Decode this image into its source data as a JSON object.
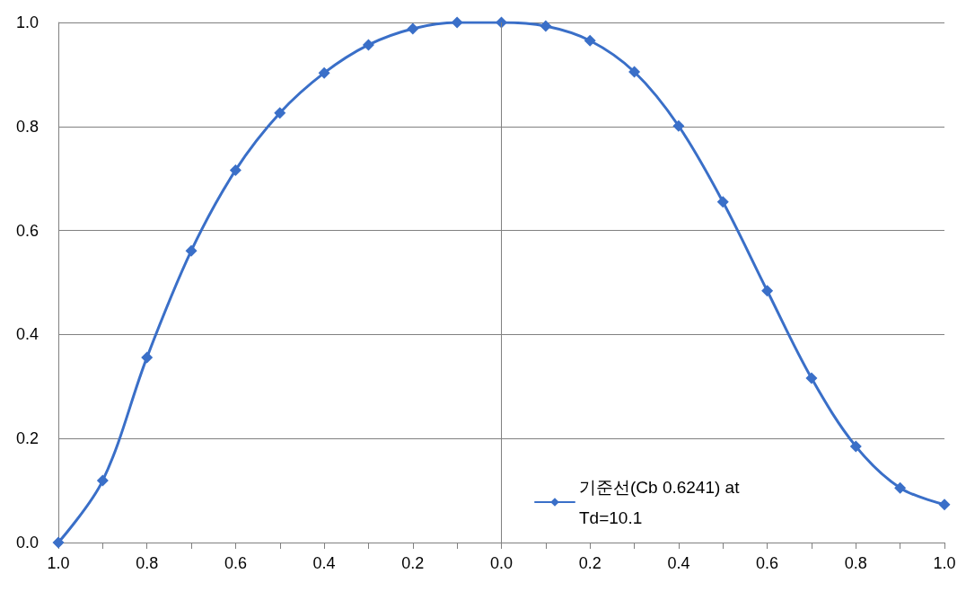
{
  "chart_data": {
    "type": "line",
    "categories": [
      "1.0",
      null,
      "0.8",
      null,
      "0.6",
      null,
      "0.4",
      null,
      "0.2",
      null,
      "0.0",
      null,
      "0.2",
      null,
      "0.4",
      null,
      "0.6",
      null,
      "0.8",
      null,
      "1.0"
    ],
    "series": [
      {
        "name": "기준선(Cb 0.6241) at Td=10.1",
        "color": "#3a6fc8",
        "values": [
          0.0,
          0.119,
          0.356,
          0.561,
          0.716,
          0.826,
          0.903,
          0.957,
          0.988,
          1.0,
          1.0,
          0.993,
          0.965,
          0.905,
          0.801,
          0.655,
          0.484,
          0.316,
          0.185,
          0.105,
          0.073
        ]
      }
    ],
    "ylim": [
      0,
      1
    ],
    "yticks": [
      {
        "value": 0,
        "label": "0.0"
      },
      {
        "value": 0.2,
        "label": "0.2"
      },
      {
        "value": 0.4,
        "label": "0.4"
      },
      {
        "value": 0.6,
        "label": "0.6"
      },
      {
        "value": 0.8,
        "label": "0.8"
      },
      {
        "value": 1,
        "label": "1.0"
      }
    ],
    "ref_lines": [
      {
        "axis": "x",
        "value": "0.0",
        "color": "#808080"
      }
    ],
    "grid": "y",
    "legend": "bottom",
    "marker": "diamond",
    "line_style": "solid"
  }
}
